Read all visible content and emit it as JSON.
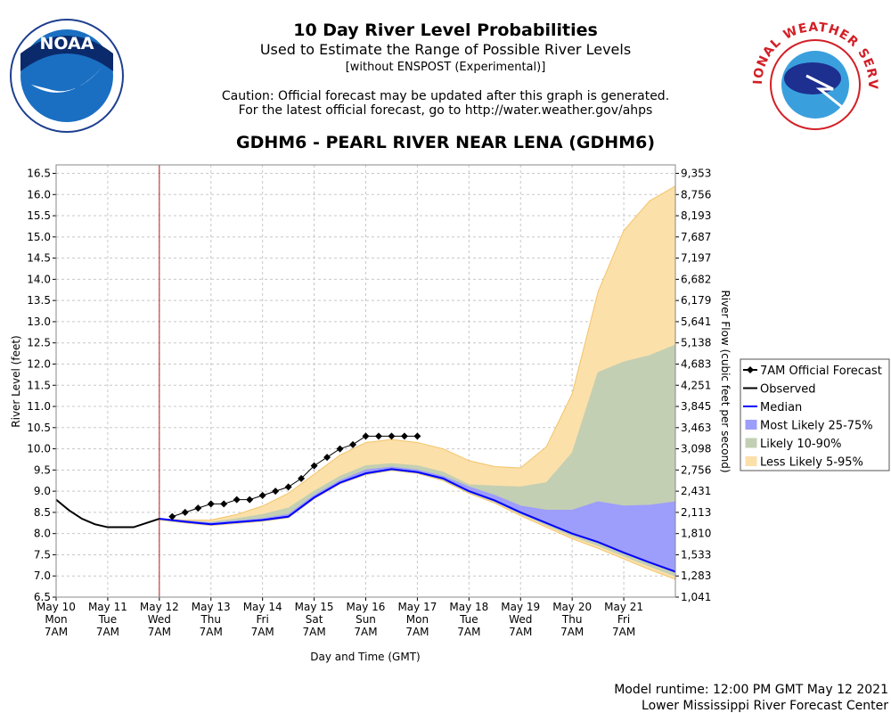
{
  "header": {
    "title": "10 Day River Level Probabilities",
    "subtitle": "Used to Estimate the Range of Possible River Levels",
    "note": "[without ENSPOST (Experimental)]",
    "caution": [
      "Caution: Official forecast may be updated after this graph is generated.",
      "For the latest official forecast, go to http://water.weather.gov/ahps"
    ],
    "noaa_logo": "NOAA",
    "nws_logo": "NATIONAL WEATHER SERVICE"
  },
  "footer": [
    "Model runtime: 12:00 PM GMT May 12 2021",
    "Lower Mississippi River Forecast Center"
  ],
  "chart_data": {
    "type": "line",
    "title": "GDHM6 - PEARL RIVER NEAR LENA (GDHM6)",
    "x_label": "Day and Time (GMT)",
    "y_label": "River Level (feet)",
    "y2_label": "River Flow (cubic feet per second)",
    "xlim": [
      "May 10 7AM",
      "May 22 7AM"
    ],
    "xticks": [
      {
        "value": "May 10 7AM",
        "label": [
          "May 10",
          "Mon",
          "7AM"
        ]
      },
      {
        "value": "May 11 7AM",
        "label": [
          "May 11",
          "Tue",
          "7AM"
        ]
      },
      {
        "value": "May 12 7AM",
        "label": [
          "May 12",
          "Wed",
          "7AM"
        ]
      },
      {
        "value": "May 13 7AM",
        "label": [
          "May 13",
          "Thu",
          "7AM"
        ]
      },
      {
        "value": "May 14 7AM",
        "label": [
          "May 14",
          "Fri",
          "7AM"
        ]
      },
      {
        "value": "May 15 7AM",
        "label": [
          "May 15",
          "Sat",
          "7AM"
        ]
      },
      {
        "value": "May 16 7AM",
        "label": [
          "May 16",
          "Sun",
          "7AM"
        ]
      },
      {
        "value": "May 17 7AM",
        "label": [
          "May 17",
          "Mon",
          "7AM"
        ]
      },
      {
        "value": "May 18 7AM",
        "label": [
          "May 18",
          "Tue",
          "7AM"
        ]
      },
      {
        "value": "May 19 7AM",
        "label": [
          "May 19",
          "Wed",
          "7AM"
        ]
      },
      {
        "value": "May 20 7AM",
        "label": [
          "May 20",
          "Thu",
          "7AM"
        ]
      },
      {
        "value": "May 21 7AM",
        "label": [
          "May 21",
          "Fri",
          "7AM"
        ]
      }
    ],
    "ylim": [
      6.5,
      16.7
    ],
    "yticks": [
      6.5,
      {
        "value": 7,
        "label": "7.0"
      },
      7.5,
      {
        "value": 8,
        "label": "8.0"
      },
      8.5,
      {
        "value": 9,
        "label": "9.0"
      },
      9.5,
      {
        "value": 10,
        "label": "10.0"
      },
      10.5,
      {
        "value": 11,
        "label": "11.0"
      },
      11.5,
      {
        "value": 12,
        "label": "12.0"
      },
      12.5,
      {
        "value": 13,
        "label": "13.0"
      },
      13.5,
      {
        "value": 14,
        "label": "14.0"
      },
      14.5,
      {
        "value": 15,
        "label": "15.0"
      },
      15.5,
      {
        "value": 16,
        "label": "16.0"
      },
      16.5
    ],
    "y2ticks": [
      {
        "value": 1041,
        "label": "1,041"
      },
      {
        "value": 1283,
        "label": "1,283"
      },
      {
        "value": 1533,
        "label": "1,533"
      },
      {
        "value": 1810,
        "label": "1,810"
      },
      {
        "value": 2113,
        "label": "2,113"
      },
      {
        "value": 2431,
        "label": "2,431"
      },
      {
        "value": 2756,
        "label": "2,756"
      },
      {
        "value": 3098,
        "label": "3,098"
      },
      {
        "value": 3463,
        "label": "3,463"
      },
      {
        "value": 3845,
        "label": "3,845"
      },
      {
        "value": 4251,
        "label": "4,251"
      },
      {
        "value": 4683,
        "label": "4,683"
      },
      {
        "value": 5138,
        "label": "5,138"
      },
      {
        "value": 5641,
        "label": "5,641"
      },
      {
        "value": 6179,
        "label": "6,179"
      },
      {
        "value": 6682,
        "label": "6,682"
      },
      {
        "value": 7197,
        "label": "7,197"
      },
      {
        "value": 7687,
        "label": "7,687"
      },
      {
        "value": 8193,
        "label": "8,193"
      },
      {
        "value": 8756,
        "label": "8,756"
      },
      {
        "value": 9353,
        "label": "9,353"
      }
    ],
    "grid": true,
    "legend": "right",
    "marker_x": "May 12 7AM",
    "band_x": [
      "May 12 7AM",
      "May 12 7PM",
      "May 13 7AM",
      "May 13 7PM",
      "May 14 7AM",
      "May 14 7PM",
      "May 15 7AM",
      "May 15 7PM",
      "May 16 7AM",
      "May 16 7PM",
      "May 17 7AM",
      "May 17 7PM",
      "May 18 7AM",
      "May 18 7PM",
      "May 19 7AM",
      "May 19 7PM",
      "May 20 7AM",
      "May 20 7PM",
      "May 21 7AM",
      "May 21 7PM",
      "May 22 7AM"
    ],
    "series": [
      {
        "name": "7AM Official Forecast",
        "color": "#000000",
        "marker": "diamond",
        "x": [
          "May 12 1PM",
          "May 12 7PM",
          "May 13 1AM",
          "May 13 7AM",
          "May 13 1PM",
          "May 13 7PM",
          "May 14 1AM",
          "May 14 7AM",
          "May 14 1PM",
          "May 14 7PM",
          "May 15 1AM",
          "May 15 7AM",
          "May 15 1PM",
          "May 15 7PM",
          "May 16 1AM",
          "May 16 7AM",
          "May 16 1PM",
          "May 16 7PM",
          "May 17 1AM",
          "May 17 7AM"
        ],
        "values": [
          8.4,
          8.5,
          8.6,
          8.7,
          8.7,
          8.8,
          8.8,
          8.9,
          9.0,
          9.1,
          9.3,
          9.6,
          9.8,
          10.0,
          10.1,
          10.3,
          10.3,
          10.3,
          10.3,
          10.3
        ]
      },
      {
        "name": "Observed",
        "color": "#000000",
        "x": [
          "May 10 7AM",
          "May 10 1PM",
          "May 10 7PM",
          "May 11 1AM",
          "May 11 7AM",
          "May 11 1PM",
          "May 11 7PM",
          "May 12 1AM",
          "May 12 7AM"
        ],
        "values": [
          8.8,
          8.55,
          8.35,
          8.22,
          8.15,
          8.15,
          8.15,
          8.25,
          8.35
        ]
      },
      {
        "name": "Median",
        "color": "#0000ff",
        "values": [
          8.35,
          8.28,
          8.22,
          8.27,
          8.32,
          8.4,
          8.85,
          9.2,
          9.42,
          9.52,
          9.45,
          9.3,
          9.0,
          8.78,
          8.5,
          8.25,
          8.0,
          7.8,
          7.55,
          7.32,
          7.1
        ]
      },
      {
        "name": "Most Likely 25-75%",
        "color": "#9d9dfb",
        "lower": [
          8.34,
          8.27,
          8.21,
          8.26,
          8.31,
          8.39,
          8.84,
          9.19,
          9.41,
          9.51,
          9.44,
          9.29,
          8.99,
          8.77,
          8.49,
          8.24,
          7.99,
          7.79,
          7.54,
          7.31,
          7.09
        ],
        "upper": [
          8.35,
          8.3,
          8.25,
          8.3,
          8.35,
          8.45,
          8.9,
          9.25,
          9.5,
          9.57,
          9.5,
          9.35,
          9.1,
          8.9,
          8.65,
          8.55,
          8.55,
          8.75,
          8.65,
          8.67,
          8.75
        ]
      },
      {
        "name": "Likely 10-90%",
        "color": "#c3cfb3",
        "lower": [
          8.33,
          8.26,
          8.2,
          8.25,
          8.3,
          8.38,
          8.83,
          9.18,
          9.4,
          9.5,
          9.43,
          9.27,
          8.97,
          8.75,
          8.46,
          8.2,
          7.94,
          7.72,
          7.47,
          7.23,
          7.0
        ],
        "upper": [
          8.35,
          8.3,
          8.27,
          8.35,
          8.45,
          8.6,
          9.0,
          9.35,
          9.6,
          9.65,
          9.6,
          9.45,
          9.15,
          9.12,
          9.1,
          9.2,
          9.9,
          11.8,
          12.05,
          12.2,
          12.45
        ]
      },
      {
        "name": "Less Likely 5-95%",
        "color": "#fbe0aa",
        "lower": [
          8.32,
          8.25,
          8.19,
          8.24,
          8.29,
          8.37,
          8.82,
          9.17,
          9.39,
          9.49,
          9.42,
          9.25,
          8.95,
          8.72,
          8.42,
          8.15,
          7.88,
          7.65,
          7.4,
          7.15,
          6.92
        ],
        "upper": [
          8.35,
          8.32,
          8.32,
          8.45,
          8.65,
          8.95,
          9.4,
          9.85,
          10.15,
          10.22,
          10.15,
          10.0,
          9.72,
          9.58,
          9.55,
          10.05,
          11.3,
          13.7,
          15.15,
          15.85,
          16.2
        ]
      }
    ]
  }
}
